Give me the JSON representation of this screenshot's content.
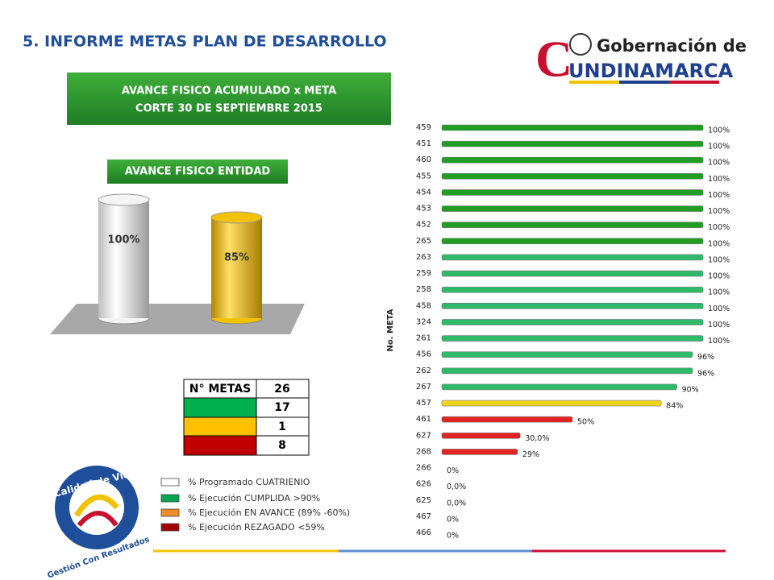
{
  "header": {
    "title": "5. INFORME METAS PLAN DE DESARROLLO"
  },
  "logo": {
    "initial": "C",
    "line1": "Gobernación de",
    "line2": "UNDINAMARCA"
  },
  "banner": {
    "line1": "AVANCE FISICO ACUMULADO x META",
    "line2": "CORTE 30 DE SEPTIEMBRE 2015"
  },
  "chart_data": [
    {
      "type": "cylinder",
      "title": "AVANCE FISICO ENTIDAD",
      "values": [
        100,
        85
      ],
      "value_labels": [
        "100%",
        "85%"
      ],
      "colors": [
        "#f4f4f4",
        "#f2c200"
      ],
      "ylim": [
        0,
        100
      ]
    },
    {
      "type": "hbar",
      "y_label": "No. META",
      "categories": [
        "459",
        "451",
        "460",
        "455",
        "454",
        "453",
        "452",
        "265",
        "263",
        "259",
        "258",
        "458",
        "324",
        "261",
        "456",
        "262",
        "267",
        "457",
        "461",
        "627",
        "268",
        "266",
        "626",
        "625",
        "467",
        "466"
      ],
      "values": [
        100,
        100,
        100,
        100,
        100,
        100,
        100,
        100,
        100,
        100,
        100,
        100,
        100,
        100,
        96,
        96,
        90,
        84,
        50,
        30,
        29,
        0,
        0,
        0,
        0,
        0
      ],
      "value_labels": [
        "100%",
        "100%",
        "100%",
        "100%",
        "100%",
        "100%",
        "100%",
        "100%",
        "100%",
        "100%",
        "100%",
        "100%",
        "100%",
        "100%",
        "96%",
        "96%",
        "90%",
        "84%",
        "50%",
        "30,0%",
        "29%",
        "0%",
        "0,0%",
        "0,0%",
        "0%",
        "0%"
      ],
      "colors": [
        "#1f9e22",
        "#1f9e22",
        "#1f9e22",
        "#1f9e22",
        "#1f9e22",
        "#1f9e22",
        "#1f9e22",
        "#1f9e22",
        "#2dbb6a",
        "#2dbb6a",
        "#2dbb6a",
        "#2dbb6a",
        "#2dbb6a",
        "#2dbb6a",
        "#2dbb6a",
        "#2dbb6a",
        "#2dbb6a",
        "#f0d21c",
        "#e32222",
        "#e32222",
        "#e32222",
        "#cccccc",
        "#cccccc",
        "#cccccc",
        "#cccccc",
        "#cccccc"
      ],
      "xlim": [
        0,
        100
      ]
    }
  ],
  "table": {
    "header": "N° METAS",
    "total": 26,
    "rows": [
      {
        "color": "#00b050",
        "count": 17
      },
      {
        "color": "#ffc000",
        "count": 1
      },
      {
        "color": "#c00000",
        "count": 8
      }
    ]
  },
  "legend": {
    "items": [
      {
        "color": "#ffffff",
        "label": "% Programado CUATRIENIO"
      },
      {
        "color": "#00a650",
        "label": "% Ejecución CUMPLIDA >90%"
      },
      {
        "color": "#f28c28",
        "label": "% Ejecución EN AVANCE (89% -60%)"
      },
      {
        "color": "#a50000",
        "label": "% Ejecución REZAGADO <59%"
      }
    ]
  },
  "badge": {
    "top": "Calidad de Vida",
    "bottom": "Gestión Con Resultados"
  }
}
